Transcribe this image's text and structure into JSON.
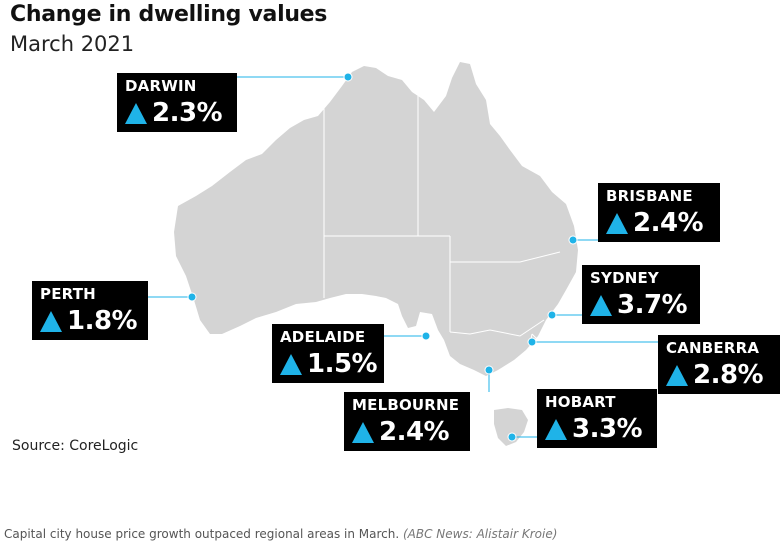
{
  "title": "Change in dwelling values",
  "subtitle": "March 2021",
  "source": "Source: CoreLogic",
  "caption": {
    "text": "Capital city house price growth outpaced regional areas in March.",
    "credit": "(ABC News: Alistair Kroie)"
  },
  "colors": {
    "land": "#d4d4d4",
    "borders": "#ffffff",
    "label_bg": "#000000",
    "up_arrow": "#1fb3e8",
    "leader_line": "#1fb3e8"
  },
  "cities": [
    {
      "name": "DARWIN",
      "value": "2.3%",
      "direction": "up",
      "change_pct": 2.3
    },
    {
      "name": "BRISBANE",
      "value": "2.4%",
      "direction": "up",
      "change_pct": 2.4
    },
    {
      "name": "PERTH",
      "value": "1.8%",
      "direction": "up",
      "change_pct": 1.8
    },
    {
      "name": "SYDNEY",
      "value": "3.7%",
      "direction": "up",
      "change_pct": 3.7
    },
    {
      "name": "ADELAIDE",
      "value": "1.5%",
      "direction": "up",
      "change_pct": 1.5
    },
    {
      "name": "CANBERRA",
      "value": "2.8%",
      "direction": "up",
      "change_pct": 2.8
    },
    {
      "name": "MELBOURNE",
      "value": "2.4%",
      "direction": "up",
      "change_pct": 2.4
    },
    {
      "name": "HOBART",
      "value": "3.3%",
      "direction": "up",
      "change_pct": 3.3
    }
  ]
}
